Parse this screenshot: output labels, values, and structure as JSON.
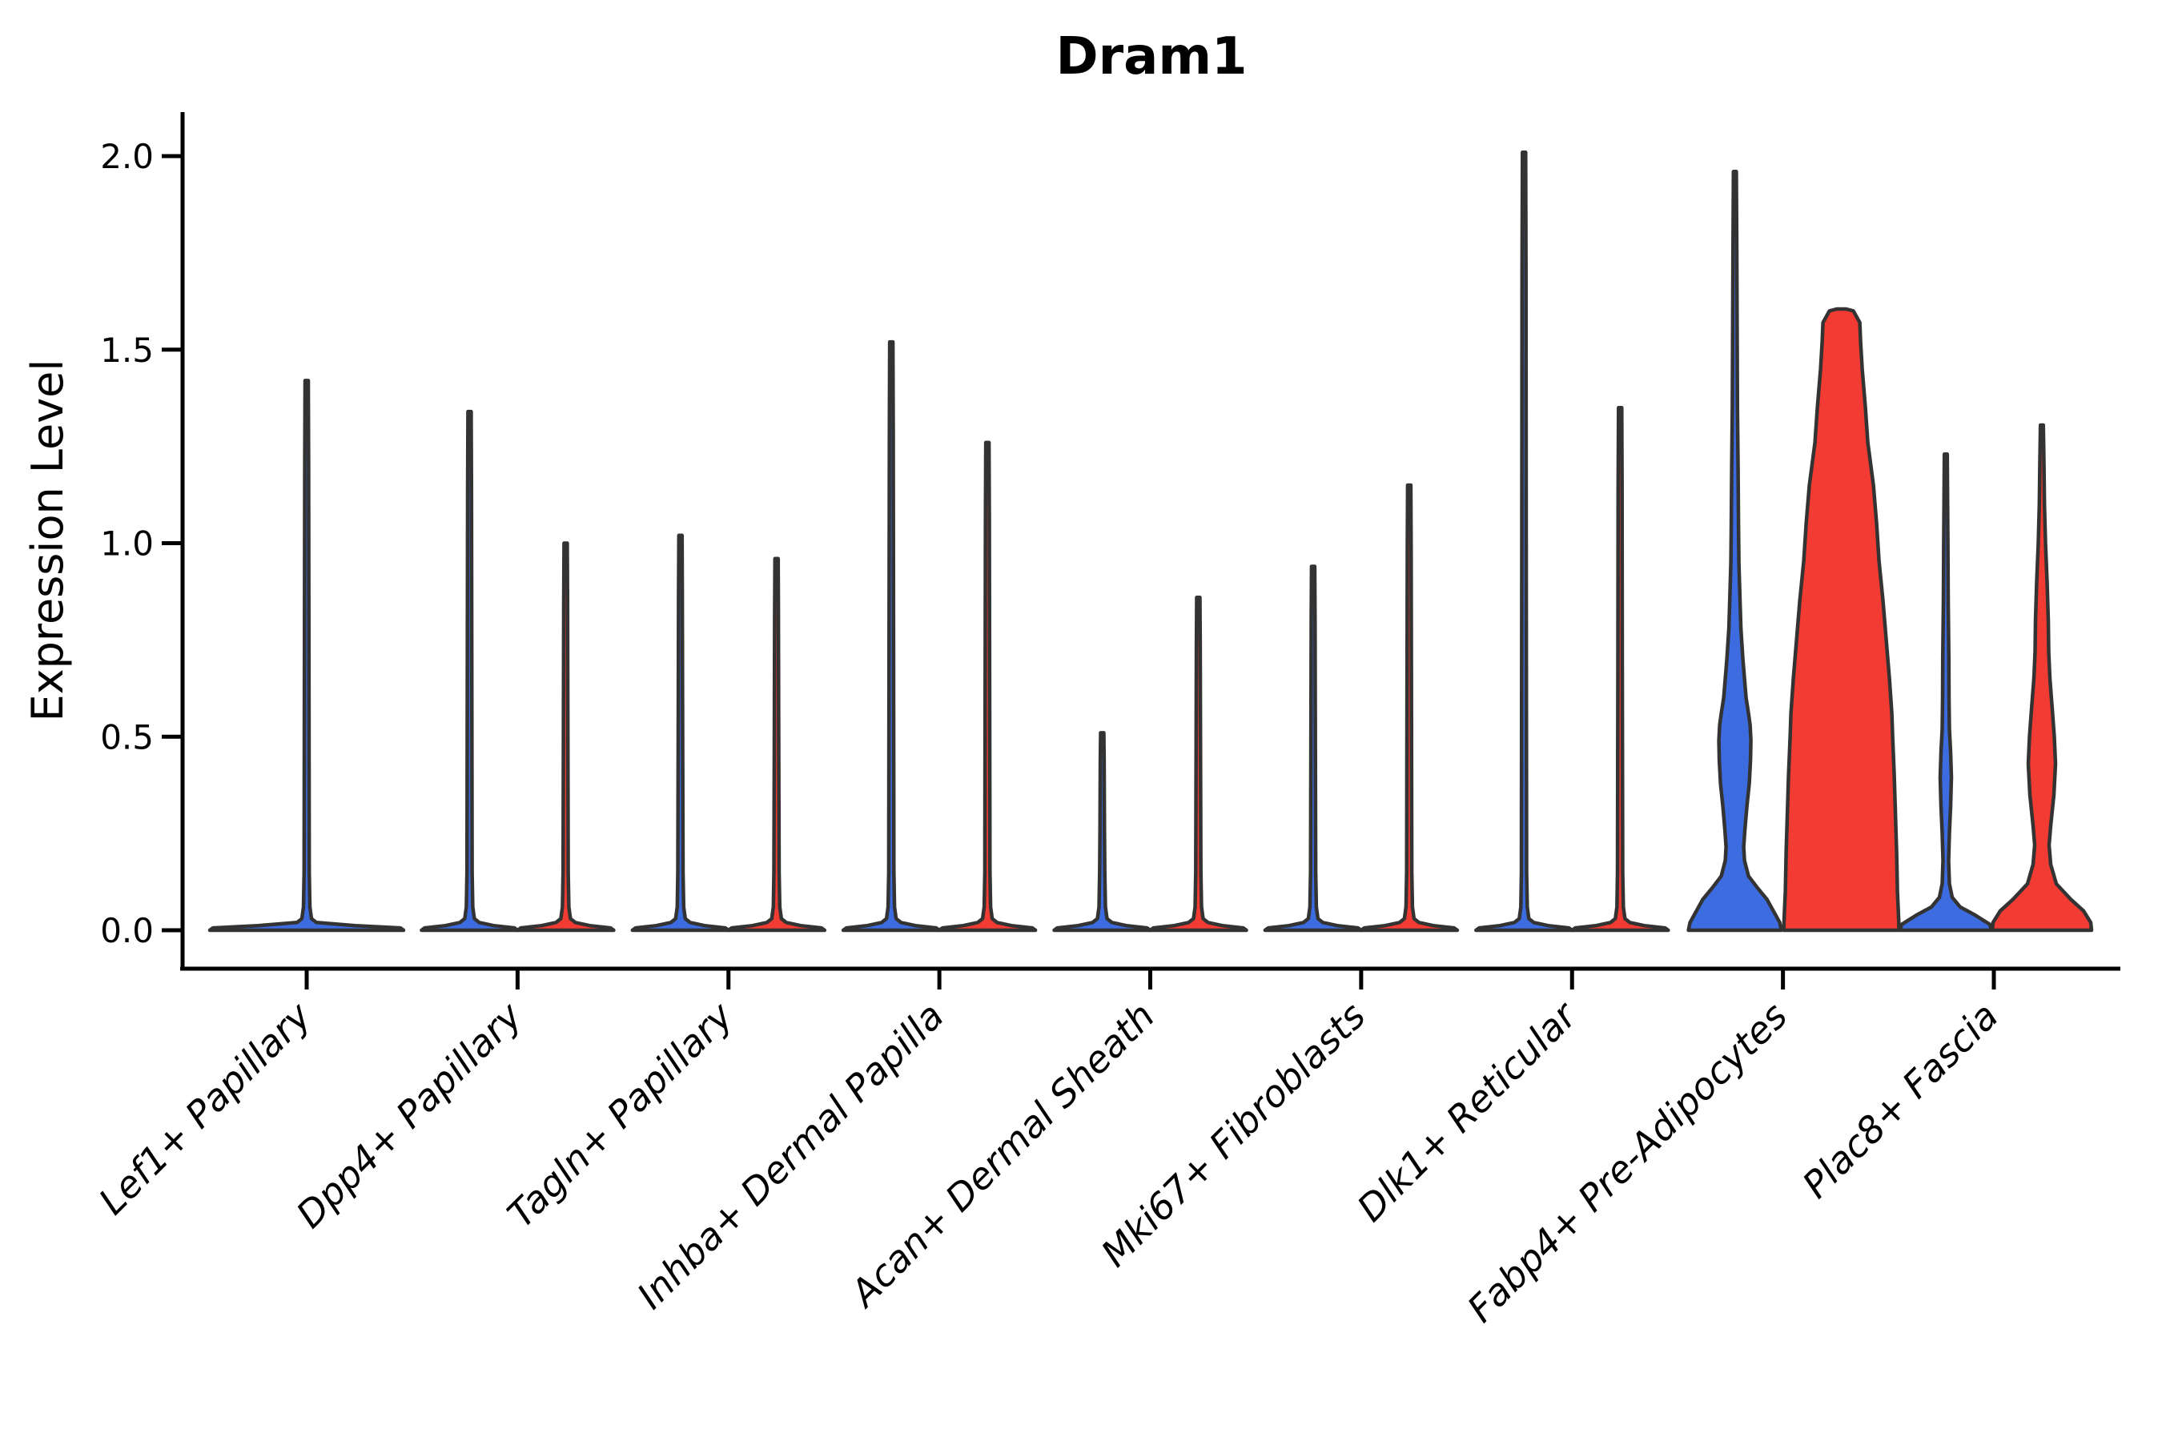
{
  "figure": {
    "title": "Dram1",
    "ylabel": "Expression Level",
    "ytick_labels": [
      "0.0",
      "0.5",
      "1.0",
      "1.5",
      "2.0"
    ]
  },
  "chart_data": {
    "type": "violin",
    "title": "Dram1",
    "xlabel": "",
    "ylabel": "Expression Level",
    "ylim": [
      -0.1,
      2.1
    ],
    "yticks": [
      0.0,
      0.5,
      1.0,
      1.5,
      2.0
    ],
    "grid": false,
    "legend": "none",
    "categories": [
      "Lef1+ Papillary",
      "Dpp4+ Papillary",
      "Tagln+ Papillary",
      "Inhba+ Dermal Papilla",
      "Acan+ Dermal Sheath",
      "Mki67+ Fibroblasts",
      "Dlk1+ Reticular",
      "Fabp4+ Pre-Adipocytes",
      "Plac8+ Fascia"
    ],
    "groups": [
      {
        "name": "blue",
        "color": "#3D6CE0"
      },
      {
        "name": "red",
        "color": "#F23B32"
      }
    ],
    "outline_color": "#333333",
    "description": "Zero-inflated expression violins; most violins collapse to a flat base at 0 with a thin spike to the max expression value. Fabp4+ Pre-Adipocytes and Plac8+ Fascia show substantial non-zero density.",
    "max_expression": [
      {
        "category": "Lef1+ Papillary",
        "blue": 1.42,
        "red": null
      },
      {
        "category": "Dpp4+ Papillary",
        "blue": 1.34,
        "red": 1.0
      },
      {
        "category": "Tagln+ Papillary",
        "blue": 1.02,
        "red": 0.96
      },
      {
        "category": "Inhba+ Dermal Papilla",
        "blue": 1.52,
        "red": 1.26
      },
      {
        "category": "Acan+ Dermal Sheath",
        "blue": 0.51,
        "red": 0.86
      },
      {
        "category": "Mki67+ Fibroblasts",
        "blue": 0.94,
        "red": 1.15
      },
      {
        "category": "Dlk1+ Reticular",
        "blue": 2.01,
        "red": 1.35
      },
      {
        "category": "Fabp4+ Pre-Adipocytes",
        "blue": 1.96,
        "red": 1.6
      },
      {
        "category": "Plac8+ Fascia",
        "blue": 1.23,
        "red": 1.3
      }
    ],
    "violins": [
      {
        "category_index": 0,
        "group": "blue",
        "dx": 0,
        "base_halfwidth": 121,
        "max": 1.42,
        "shape": "spike"
      },
      {
        "category_index": 1,
        "group": "blue",
        "dx": -60,
        "base_halfwidth": 60,
        "max": 1.34,
        "shape": "spike"
      },
      {
        "category_index": 1,
        "group": "red",
        "dx": 60,
        "base_halfwidth": 60,
        "max": 1.0,
        "shape": "spike"
      },
      {
        "category_index": 2,
        "group": "blue",
        "dx": -60,
        "base_halfwidth": 60,
        "max": 1.02,
        "shape": "spike"
      },
      {
        "category_index": 2,
        "group": "red",
        "dx": 60,
        "base_halfwidth": 60,
        "max": 0.96,
        "shape": "spike"
      },
      {
        "category_index": 3,
        "group": "blue",
        "dx": -60,
        "base_halfwidth": 60,
        "max": 1.52,
        "shape": "spike"
      },
      {
        "category_index": 3,
        "group": "red",
        "dx": 60,
        "base_halfwidth": 60,
        "max": 1.26,
        "shape": "spike"
      },
      {
        "category_index": 4,
        "group": "blue",
        "dx": -60,
        "base_halfwidth": 60,
        "max": 0.51,
        "shape": "spike"
      },
      {
        "category_index": 4,
        "group": "red",
        "dx": 60,
        "base_halfwidth": 60,
        "max": 0.86,
        "shape": "spike"
      },
      {
        "category_index": 5,
        "group": "blue",
        "dx": -60,
        "base_halfwidth": 60,
        "max": 0.94,
        "shape": "spike"
      },
      {
        "category_index": 5,
        "group": "red",
        "dx": 60,
        "base_halfwidth": 60,
        "max": 1.15,
        "shape": "spike"
      },
      {
        "category_index": 6,
        "group": "blue",
        "dx": -60,
        "base_halfwidth": 60,
        "max": 2.01,
        "shape": "spike"
      },
      {
        "category_index": 6,
        "group": "red",
        "dx": 60,
        "base_halfwidth": 60,
        "max": 1.35,
        "shape": "spike"
      },
      {
        "category_index": 7,
        "group": "blue",
        "dx": -60,
        "base_halfwidth": 58,
        "max": 1.96,
        "shape": "profile",
        "profile": [
          [
            0,
            58
          ],
          [
            0.02,
            56
          ],
          [
            0.05,
            48
          ],
          [
            0.08,
            40
          ],
          [
            0.11,
            28
          ],
          [
            0.14,
            17
          ],
          [
            0.18,
            12
          ],
          [
            0.215,
            11
          ],
          [
            0.26,
            12.5
          ],
          [
            0.32,
            15
          ],
          [
            0.38,
            18
          ],
          [
            0.44,
            19.5
          ],
          [
            0.49,
            20
          ],
          [
            0.53,
            19
          ],
          [
            0.56,
            17
          ],
          [
            0.6,
            14
          ],
          [
            0.65,
            12
          ],
          [
            0.7,
            10
          ],
          [
            0.78,
            7.5
          ],
          [
            0.88,
            6
          ],
          [
            0.95,
            5
          ],
          [
            1.05,
            4.5
          ],
          [
            1.19,
            4
          ],
          [
            1.35,
            3.2
          ],
          [
            1.55,
            2.8
          ],
          [
            1.75,
            2.4
          ],
          [
            1.96,
            1.8
          ]
        ]
      },
      {
        "category_index": 7,
        "group": "red",
        "dx": 73,
        "base_halfwidth": 72,
        "max": 1.605,
        "shape": "profile",
        "profile": [
          [
            0,
            72
          ],
          [
            0.03,
            71.5
          ],
          [
            0.1,
            70
          ],
          [
            0.2,
            69
          ],
          [
            0.3,
            67.5
          ],
          [
            0.4,
            66
          ],
          [
            0.5,
            64
          ],
          [
            0.56,
            63
          ],
          [
            0.65,
            60
          ],
          [
            0.75,
            56
          ],
          [
            0.85,
            52
          ],
          [
            0.954,
            47
          ],
          [
            1.05,
            44
          ],
          [
            1.15,
            40
          ],
          [
            1.26,
            33
          ],
          [
            1.35,
            30
          ],
          [
            1.45,
            26
          ],
          [
            1.52,
            24
          ],
          [
            1.57,
            23
          ],
          [
            1.6,
            15
          ],
          [
            1.605,
            6
          ]
        ]
      },
      {
        "category_index": 8,
        "group": "blue",
        "dx": -60,
        "base_halfwidth": 57,
        "max": 1.23,
        "shape": "profile",
        "profile": [
          [
            0,
            57
          ],
          [
            0.015,
            55
          ],
          [
            0.04,
            36
          ],
          [
            0.06,
            18
          ],
          [
            0.085,
            8
          ],
          [
            0.12,
            4.5
          ],
          [
            0.18,
            3.5
          ],
          [
            0.25,
            4.5
          ],
          [
            0.32,
            6
          ],
          [
            0.395,
            7
          ],
          [
            0.46,
            6
          ],
          [
            0.52,
            4.5
          ],
          [
            0.6,
            4
          ],
          [
            0.7,
            3.8
          ],
          [
            0.85,
            3
          ],
          [
            1.0,
            2.6
          ],
          [
            1.23,
            1.8
          ]
        ]
      },
      {
        "category_index": 8,
        "group": "red",
        "dx": 60,
        "base_halfwidth": 62,
        "max": 1.305,
        "shape": "profile",
        "profile": [
          [
            0,
            62
          ],
          [
            0.02,
            61
          ],
          [
            0.05,
            52
          ],
          [
            0.08,
            36
          ],
          [
            0.12,
            18
          ],
          [
            0.17,
            11
          ],
          [
            0.22,
            9
          ],
          [
            0.27,
            11
          ],
          [
            0.35,
            15
          ],
          [
            0.43,
            17
          ],
          [
            0.5,
            15.5
          ],
          [
            0.57,
            13
          ],
          [
            0.65,
            10
          ],
          [
            0.72,
            8.5
          ],
          [
            0.8,
            8
          ],
          [
            0.9,
            6.5
          ],
          [
            1.0,
            4.5
          ],
          [
            1.1,
            3.2
          ],
          [
            1.2,
            2.6
          ],
          [
            1.305,
            1.8
          ]
        ]
      }
    ]
  }
}
